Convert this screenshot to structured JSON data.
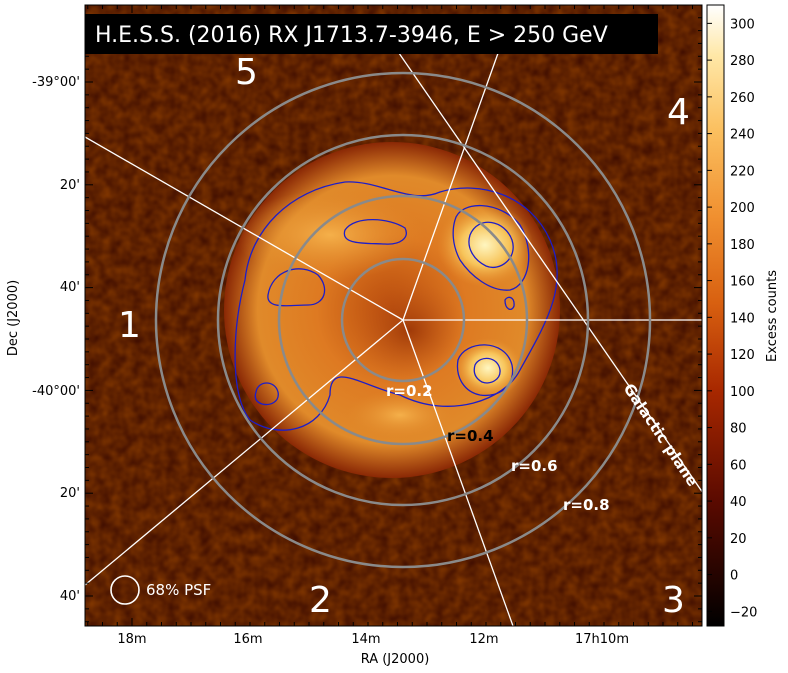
{
  "chart_data": {
    "type": "heatmap",
    "title": "H.E.S.S. (2016) RX J1713.7-3946, E > 250 GeV",
    "xlabel": "RA (J2000)",
    "ylabel": "Dec (J2000)",
    "x_ticks": [
      "18m",
      "16m",
      "14m",
      "12m",
      "17h10m"
    ],
    "y_ticks": [
      "-39°00'",
      "20'",
      "40'",
      "-40°00'",
      "20'",
      "40'"
    ],
    "colorbar": {
      "label": "Excess counts",
      "range": [
        -28,
        310
      ],
      "ticks": [
        -20,
        0,
        20,
        40,
        60,
        80,
        100,
        120,
        140,
        160,
        180,
        200,
        220,
        240,
        260,
        280,
        300
      ],
      "colormap": "afmhot"
    },
    "rings": [
      {
        "label": "r=0.2",
        "r": 0.2
      },
      {
        "label": "r=0.4",
        "r": 0.4
      },
      {
        "label": "r=0.6",
        "r": 0.6
      },
      {
        "label": "r=0.8",
        "r": 0.8
      }
    ],
    "sectors": [
      "1",
      "2",
      "3",
      "4",
      "5"
    ],
    "annotations": {
      "galactic_plane": "Galactic plane",
      "psf": "68% PSF"
    }
  },
  "colors": {
    "ring": "#8a8a8a",
    "contour": "#1e1ec8",
    "lines": "#ffffff",
    "background": "#3a0a00"
  }
}
